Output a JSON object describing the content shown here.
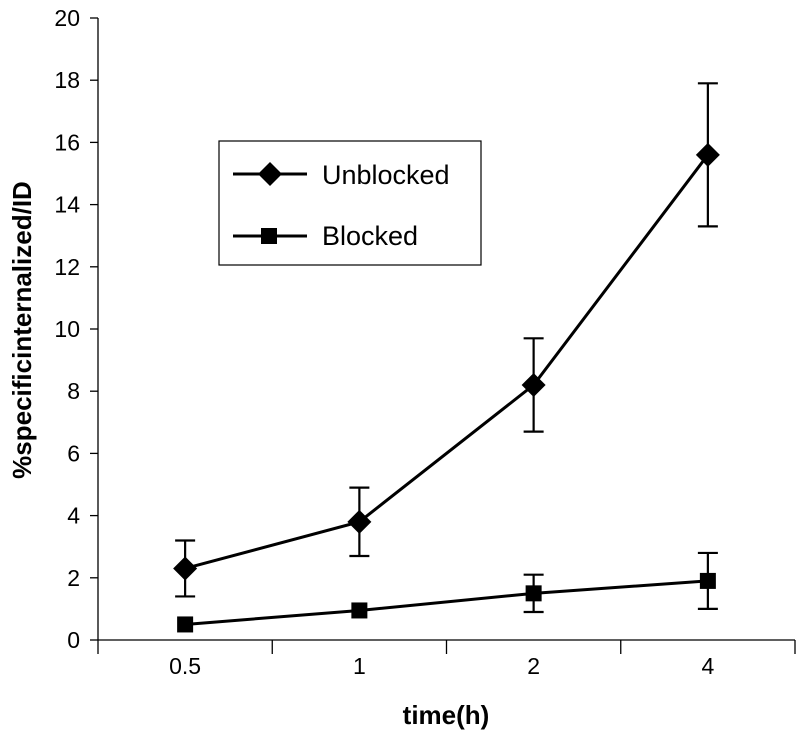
{
  "chart_data": {
    "type": "line",
    "title": "",
    "xlabel": "time(h)",
    "ylabel": "%specificinternalized/ID",
    "categories": [
      "0.5",
      "1",
      "2",
      "4"
    ],
    "ylim": [
      0,
      20
    ],
    "yticks": [
      "0",
      "2",
      "4",
      "6",
      "8",
      "10",
      "12",
      "14",
      "16",
      "18",
      "20"
    ],
    "grid": false,
    "legend_position": "upper-left",
    "series": [
      {
        "name": "Unblocked",
        "marker": "diamond",
        "color": "#000000",
        "values": [
          2.3,
          3.8,
          8.2,
          15.6
        ],
        "error": [
          0.9,
          1.1,
          1.5,
          2.3
        ]
      },
      {
        "name": "Blocked",
        "marker": "square",
        "color": "#000000",
        "values": [
          0.5,
          0.95,
          1.5,
          1.9
        ],
        "error": [
          0.0,
          0.0,
          0.6,
          0.9
        ]
      }
    ]
  }
}
